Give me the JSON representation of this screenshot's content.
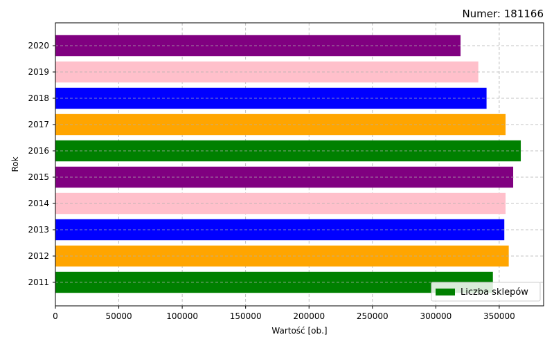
{
  "chart_data": {
    "type": "bar",
    "orientation": "horizontal",
    "title": "Numer: 181166",
    "title_position": "top-right",
    "xlabel": "Wartość [ob.]",
    "ylabel": "Rok",
    "categories": [
      "2011",
      "2012",
      "2013",
      "2014",
      "2015",
      "2016",
      "2017",
      "2018",
      "2019",
      "2020"
    ],
    "values": [
      345000,
      357500,
      354000,
      355000,
      361000,
      367000,
      355000,
      340000,
      333500,
      319500
    ],
    "bar_colors": [
      "#008000",
      "#ffa500",
      "#0000ff",
      "#ffc0cb",
      "#800080",
      "#008000",
      "#ffa500",
      "#0000ff",
      "#ffc0cb",
      "#800080"
    ],
    "xlim": [
      0,
      385000
    ],
    "xticks": [
      0,
      50000,
      100000,
      150000,
      200000,
      250000,
      300000,
      350000
    ],
    "xtick_labels": [
      "0",
      "50000",
      "100000",
      "150000",
      "200000",
      "250000",
      "300000",
      "350000"
    ],
    "grid": true,
    "legend": {
      "placement": "lower-right",
      "entries": [
        {
          "label": "Liczba sklepów",
          "color": "#008000"
        }
      ]
    }
  }
}
